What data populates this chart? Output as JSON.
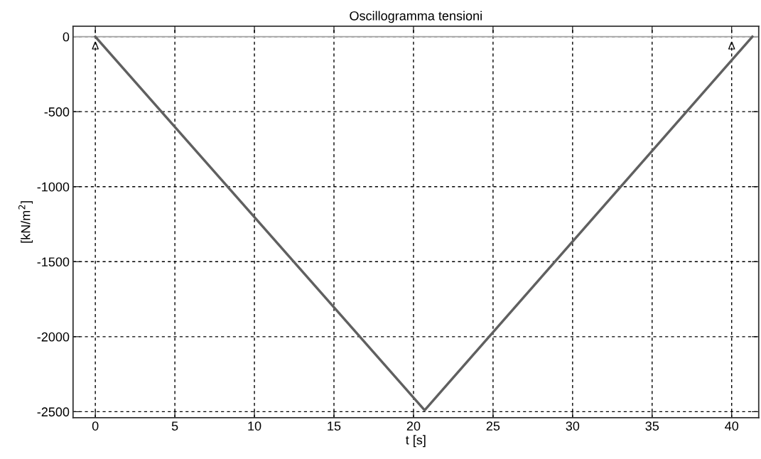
{
  "chart_data": {
    "type": "line",
    "title": "Oscillogramma tensioni",
    "xlabel": "t [s]",
    "ylabel": "[kN/m$^{2}$]",
    "x": [
      0,
      20.7,
      41.3
    ],
    "series": [
      {
        "color": "#606060",
        "values": [
          0,
          -2490,
          0
        ]
      }
    ],
    "xlim": [
      -1.4,
      41.7
    ],
    "ylim": [
      -2540,
      70
    ],
    "xticks": [
      0,
      5,
      10,
      15,
      20,
      25,
      30,
      35,
      40
    ],
    "yticks": [
      {
        "value": 0,
        "label": "0"
      },
      {
        "value": -500,
        "label": "-500"
      },
      {
        "value": -1000,
        "label": "-1000"
      },
      {
        "value": -1500,
        "label": "-1500"
      },
      {
        "value": -2000,
        "label": "-2000"
      },
      {
        "value": -2500,
        "label": "-2500"
      }
    ],
    "ref_lines": [
      {
        "axis": "y",
        "value": 0,
        "color": "#a0a0a0",
        "line_style": "solid"
      }
    ],
    "annotations": [
      {
        "text": "Δ",
        "x": 0,
        "y": 0
      },
      {
        "text": "Δ",
        "x": 40,
        "y": 0
      }
    ],
    "grid": true,
    "line_style": "solid",
    "marker": "none",
    "legend": false
  }
}
